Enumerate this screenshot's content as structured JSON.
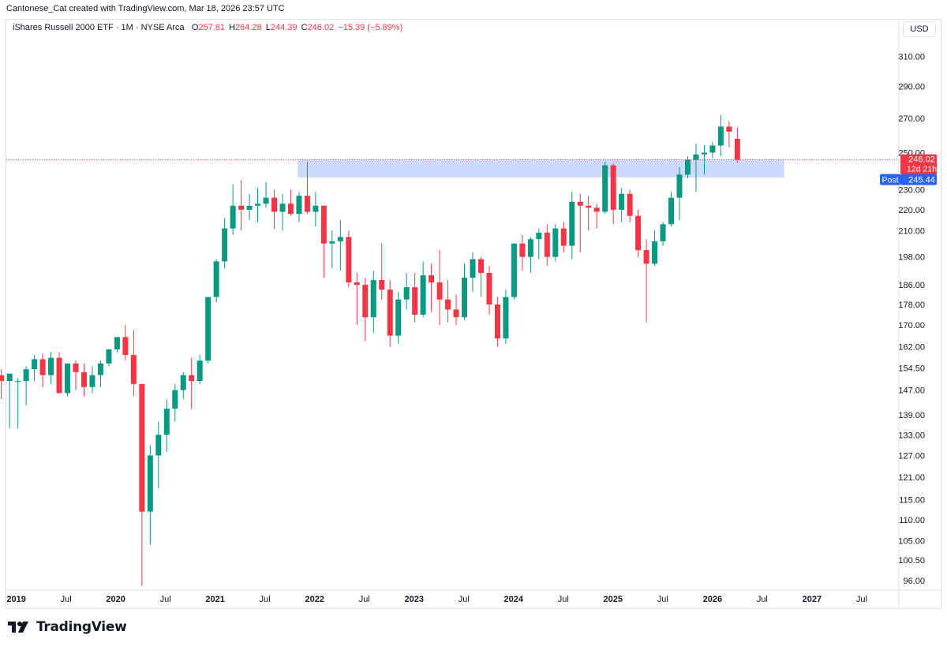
{
  "header": {
    "credit": "Cantonese_Cat created with TradingView.com, Mar 18, 2026 23:57 UTC"
  },
  "legend": {
    "symbol": "iShares Russell 2000 ETF · 1M · NYSE Arca",
    "o_label": "O",
    "o_value": "257.81",
    "h_label": "H",
    "h_value": "264.28",
    "l_label": "L",
    "l_value": "244.39",
    "c_label": "C",
    "c_value": "246.02",
    "change": "−15.39 (−5.89%)"
  },
  "currency": "USD",
  "brand": {
    "name": "TradingView",
    "logo_icon": "tradingview-logo-icon"
  },
  "colors": {
    "up": "#089981",
    "down": "#f23645",
    "zone": "#c9d8fd",
    "price_label": "#f23645",
    "post_label": "#2962ff"
  },
  "chart_data": {
    "type": "candlestick",
    "interval": "1M",
    "y_scale": "log",
    "ylim": [
      94,
      322
    ],
    "y_ticks": [
      96,
      100.5,
      105,
      110,
      115,
      121,
      127,
      133,
      139,
      147,
      154.5,
      162,
      170,
      178,
      186,
      198,
      210,
      220,
      230,
      250,
      270,
      290,
      310
    ],
    "y_tick_labels": [
      "96.00",
      "100.50",
      "105.00",
      "110.00",
      "115.00",
      "121.00",
      "127.00",
      "133.00",
      "139.00",
      "147.00",
      "154.50",
      "162.00",
      "170.00",
      "178.00",
      "186.00",
      "198.00",
      "210.00",
      "220.00",
      "230.00",
      "250.00",
      "270.00",
      "290.00",
      "310.00"
    ],
    "x_ticks": [
      {
        "label": "2019",
        "t": 2019.0,
        "bold": true
      },
      {
        "label": "Jul",
        "t": 2019.5,
        "bold": false
      },
      {
        "label": "2020",
        "t": 2020.0,
        "bold": true
      },
      {
        "label": "Jul",
        "t": 2020.5,
        "bold": false
      },
      {
        "label": "2021",
        "t": 2021.0,
        "bold": true
      },
      {
        "label": "Jul",
        "t": 2021.5,
        "bold": false
      },
      {
        "label": "2022",
        "t": 2022.0,
        "bold": true
      },
      {
        "label": "Jul",
        "t": 2022.5,
        "bold": false
      },
      {
        "label": "2023",
        "t": 2023.0,
        "bold": true
      },
      {
        "label": "Jul",
        "t": 2023.5,
        "bold": false
      },
      {
        "label": "2024",
        "t": 2024.0,
        "bold": true
      },
      {
        "label": "Jul",
        "t": 2024.5,
        "bold": false
      },
      {
        "label": "2025",
        "t": 2025.0,
        "bold": true
      },
      {
        "label": "Jul",
        "t": 2025.5,
        "bold": false
      },
      {
        "label": "2026",
        "t": 2026.0,
        "bold": true
      },
      {
        "label": "Jul",
        "t": 2026.5,
        "bold": false
      },
      {
        "label": "2027",
        "t": 2027.0,
        "bold": true
      },
      {
        "label": "Jul",
        "t": 2027.5,
        "bold": false
      }
    ],
    "candles": [
      [
        "2018-11",
        152,
        154,
        144,
        150
      ],
      [
        "2018-12",
        150,
        151,
        135,
        152.5
      ],
      [
        "2018-12b",
        150,
        151,
        135,
        150
      ],
      [
        "2019-01",
        150,
        155,
        142,
        154
      ],
      [
        "2019-02",
        154,
        159,
        150,
        157.5
      ],
      [
        "2019-03",
        157.5,
        159.5,
        148,
        152
      ],
      [
        "2019-04",
        152,
        160,
        149,
        158
      ],
      [
        "2019-05",
        158,
        160,
        146,
        146
      ],
      [
        "2019-06",
        146,
        156,
        145,
        156
      ],
      [
        "2019-07",
        156,
        157,
        147,
        153
      ],
      [
        "2019-08",
        153,
        156,
        145,
        148
      ],
      [
        "2019-09",
        148,
        155,
        146,
        152
      ],
      [
        "2019-10",
        152,
        157,
        148,
        156
      ],
      [
        "2019-11",
        156,
        161,
        155,
        161
      ],
      [
        "2019-12",
        161,
        165,
        160,
        165.5
      ],
      [
        "2020-01",
        165.5,
        170,
        157,
        159
      ],
      [
        "2020-02",
        159,
        168,
        145,
        149
      ],
      [
        "2020-03",
        149,
        149,
        95,
        112
      ],
      [
        "2020-04",
        112,
        130,
        104,
        127
      ],
      [
        "2020-05",
        127,
        137,
        118,
        133
      ],
      [
        "2020-06",
        133,
        144,
        128,
        141
      ],
      [
        "2020-07",
        141,
        149,
        137,
        147
      ],
      [
        "2020-08",
        147,
        153,
        144,
        152
      ],
      [
        "2020-09",
        152,
        158,
        141,
        150
      ],
      [
        "2020-10",
        150,
        159,
        149,
        157
      ],
      [
        "2020-11",
        157,
        181,
        156,
        181
      ],
      [
        "2020-12",
        181,
        197,
        179,
        196
      ],
      [
        "2021-01",
        196,
        216,
        193,
        211
      ],
      [
        "2021-02",
        211,
        233,
        208,
        222
      ],
      [
        "2021-03",
        222,
        235,
        210,
        220
      ],
      [
        "2021-04",
        220,
        228,
        215,
        222
      ],
      [
        "2021-05",
        222,
        231,
        214,
        223
      ],
      [
        "2021-06",
        223,
        234,
        221,
        226
      ],
      [
        "2021-07",
        226,
        230,
        211,
        219
      ],
      [
        "2021-08",
        219,
        228,
        210,
        223
      ],
      [
        "2021-09",
        223,
        230,
        217,
        218
      ],
      [
        "2021-10",
        218,
        229,
        214,
        227
      ],
      [
        "2021-11",
        227,
        245,
        218,
        219
      ],
      [
        "2021-12",
        219,
        229,
        212,
        222
      ],
      [
        "2022-01",
        222,
        222,
        189,
        204
      ],
      [
        "2022-02",
        204,
        210,
        193,
        205
      ],
      [
        "2022-03",
        205,
        215,
        192,
        207
      ],
      [
        "2022-04",
        207,
        210,
        185,
        187
      ],
      [
        "2022-05",
        187,
        191,
        170,
        186
      ],
      [
        "2022-06",
        186,
        189,
        164,
        173
      ],
      [
        "2022-07",
        173,
        192,
        167,
        188
      ],
      [
        "2022-08",
        188,
        204,
        180,
        184
      ],
      [
        "2022-09",
        184,
        188,
        162,
        166
      ],
      [
        "2022-10",
        166,
        183,
        163,
        180
      ],
      [
        "2022-11",
        180,
        191,
        176,
        185
      ],
      [
        "2022-12",
        185,
        191,
        171,
        174
      ],
      [
        "2023-01",
        174,
        196,
        173,
        190
      ],
      [
        "2023-02",
        190,
        195,
        175,
        187
      ],
      [
        "2023-03",
        187,
        201,
        170,
        180
      ],
      [
        "2023-04",
        180,
        188,
        171,
        176
      ],
      [
        "2023-05",
        176,
        182,
        170,
        173
      ],
      [
        "2023-06",
        173,
        195,
        172,
        189
      ],
      [
        "2023-07",
        189,
        200,
        183,
        197
      ],
      [
        "2023-08",
        197,
        198,
        181,
        191
      ],
      [
        "2023-09",
        191,
        194,
        174,
        178
      ],
      [
        "2023-10",
        178,
        181,
        162,
        165
      ],
      [
        "2023-11",
        165,
        184,
        163,
        181
      ],
      [
        "2023-12",
        181,
        204,
        180,
        204
      ],
      [
        "2024-01",
        204,
        208,
        192,
        198
      ],
      [
        "2024-02",
        198,
        207,
        191,
        206
      ],
      [
        "2024-03",
        206,
        211,
        197,
        209
      ],
      [
        "2024-04",
        209,
        213,
        194,
        198
      ],
      [
        "2024-05",
        198,
        213,
        196,
        211
      ],
      [
        "2024-06",
        211,
        214,
        200,
        203
      ],
      [
        "2024-07",
        203,
        229,
        197,
        224
      ],
      [
        "2024-08",
        224,
        228,
        200,
        222
      ],
      [
        "2024-09",
        222,
        227,
        210,
        221
      ],
      [
        "2024-10",
        221,
        223,
        211,
        219
      ],
      [
        "2024-11",
        219,
        245,
        218,
        243
      ],
      [
        "2024-12",
        243,
        244,
        213,
        220
      ],
      [
        "2025-01",
        220,
        231,
        214,
        228
      ],
      [
        "2025-02",
        228,
        230,
        214,
        217
      ],
      [
        "2025-03",
        217,
        220,
        198,
        201
      ],
      [
        "2025-04",
        201,
        206,
        171,
        195
      ],
      [
        "2025-05",
        195,
        210,
        194,
        205
      ],
      [
        "2025-06",
        205,
        214,
        203,
        213
      ],
      [
        "2025-07",
        213,
        229,
        212,
        226
      ],
      [
        "2025-08",
        226,
        242,
        215,
        238
      ],
      [
        "2025-09",
        238,
        248,
        236,
        246
      ],
      [
        "2025-10",
        246,
        255,
        229,
        249
      ],
      [
        "2025-11",
        249,
        254,
        238,
        250
      ],
      [
        "2025-12",
        250,
        256,
        247,
        254
      ],
      [
        "2026-01",
        254,
        272,
        248,
        265
      ],
      [
        "2026-02",
        265,
        268,
        253,
        262
      ],
      [
        "2026-03",
        257.81,
        264.28,
        244.39,
        246.02
      ]
    ],
    "zone": {
      "t_start": 2021.83,
      "t_end": 2026.72,
      "low": 236.5,
      "high": 246.2
    },
    "last_price": {
      "value": 246.02,
      "label": "246.02",
      "countdown": "12d 21h"
    },
    "post_price": {
      "value": 245.44,
      "label": "245.44",
      "tag": "Post"
    }
  }
}
